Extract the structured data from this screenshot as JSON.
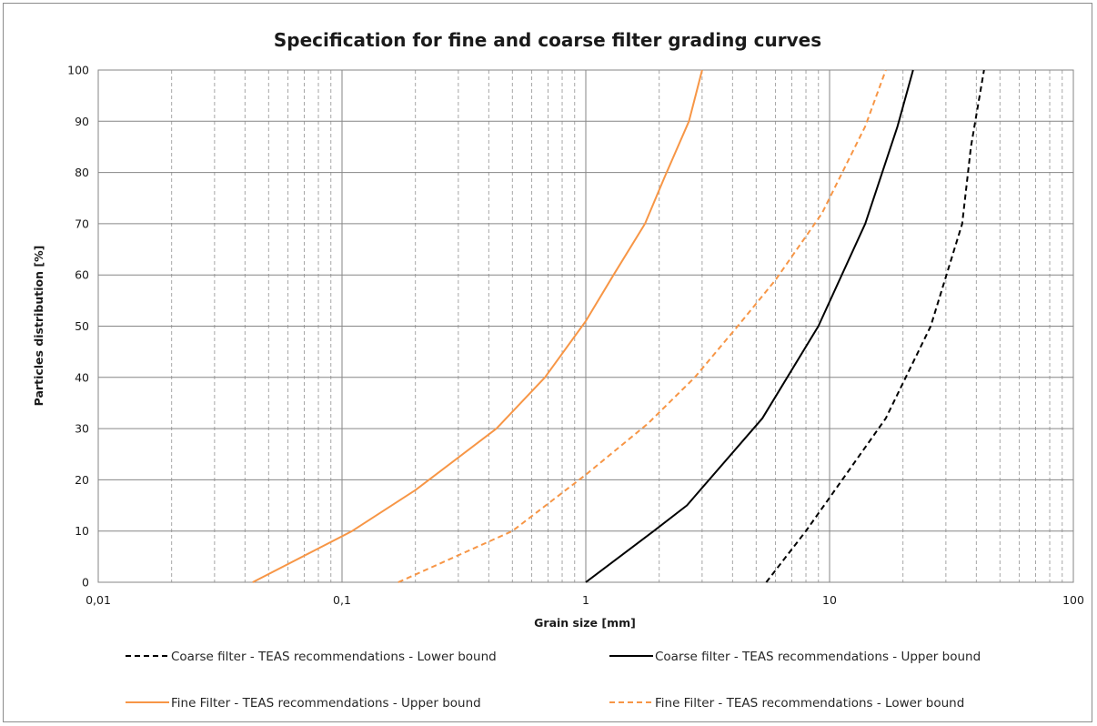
{
  "chart_data": {
    "type": "line",
    "title": "Specification for fine and coarse filter grading curves",
    "xlabel": "Grain size [mm]",
    "ylabel": "Particles distribution [%]",
    "x_scale": "log",
    "xlim": [
      0.01,
      100
    ],
    "ylim": [
      0,
      100
    ],
    "x_ticks": [
      0.01,
      0.1,
      1,
      10,
      100
    ],
    "x_tick_labels": [
      "0,01",
      "0,1",
      "1",
      "10",
      "100"
    ],
    "y_ticks": [
      0,
      10,
      20,
      30,
      40,
      50,
      60,
      70,
      80,
      90,
      100
    ],
    "y_tick_labels": [
      "0",
      "10",
      "20",
      "30",
      "40",
      "50",
      "60",
      "70",
      "80",
      "90",
      "100"
    ],
    "grid": true,
    "legend_position": "bottom",
    "series": [
      {
        "name": "Coarse filter - TEAS recommendations - Lower bound",
        "color": "#000000",
        "dash": "dashed",
        "x": [
          5.5,
          8,
          9.5,
          17,
          26,
          35,
          38,
          43
        ],
        "y": [
          0,
          10,
          15,
          32,
          50,
          70,
          85,
          100
        ]
      },
      {
        "name": "Coarse filter - TEAS recommendations - Upper bound",
        "color": "#000000",
        "dash": "solid",
        "x": [
          1,
          1.9,
          2.6,
          5.3,
          9,
          14,
          19,
          22
        ],
        "y": [
          0,
          10,
          15,
          32,
          50,
          70,
          89,
          100
        ]
      },
      {
        "name": "Fine Filter - TEAS recommendations - Upper bound",
        "color": "#f79646",
        "dash": "solid",
        "x": [
          0.043,
          0.11,
          0.2,
          0.43,
          0.68,
          1,
          1.3,
          1.75,
          2.1,
          2.65,
          3
        ],
        "y": [
          0,
          10,
          18,
          30,
          40,
          51,
          60,
          70,
          79,
          90,
          100
        ]
      },
      {
        "name": "Fine Filter - TEAS recommendations - Lower bound",
        "color": "#f79646",
        "dash": "dashed",
        "x": [
          0.17,
          0.5,
          1,
          1.8,
          2.8,
          4.2,
          6,
          9.3,
          14,
          17
        ],
        "y": [
          0,
          10,
          21,
          31,
          40,
          50,
          59,
          72,
          89,
          100
        ]
      }
    ]
  },
  "legend": [
    "Coarse filter - TEAS recommendations - Lower bound",
    "Coarse filter - TEAS recommendations - Upper bound",
    "Fine Filter - TEAS recommendations - Upper bound",
    "Fine Filter - TEAS recommendations - Lower bound"
  ]
}
